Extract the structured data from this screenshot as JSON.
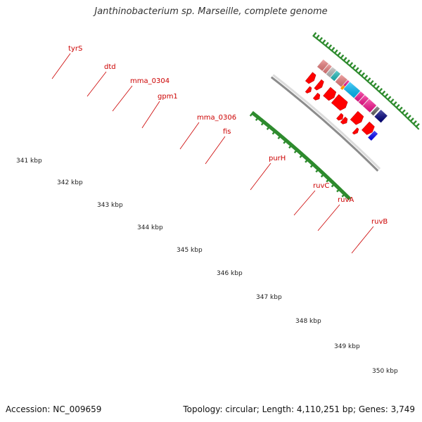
{
  "title": "Janthinobacterium sp. Marseille, complete genome",
  "footer": {
    "accession": "Accession: NC_009659",
    "summary": "Topology: circular; Length: 4,110,251 bp; Genes: 3,749"
  },
  "colors": {
    "cds_arrow": "#ff0000",
    "backbone": "#8c8c8c",
    "tick": "#2e8b2e",
    "label": "#cc0000"
  },
  "gene_labels": [
    "tyrS",
    "dtd",
    "mma_0304",
    "gpm1",
    "mma_0306",
    "fis",
    "purH",
    "ruvC",
    "ruvA",
    "ruvB"
  ],
  "kbp_labels": [
    "341 kbp",
    "342 kbp",
    "343 kbp",
    "344 kbp",
    "345 kbp",
    "346 kbp",
    "347 kbp",
    "348 kbp",
    "349 kbp",
    "350 kbp"
  ],
  "cog_blocks": [
    {
      "gene": "tyrS",
      "color": "#f08080"
    },
    {
      "gene": "dtd",
      "color": "#f08080"
    },
    {
      "gene": "mma_0304",
      "color": "#c0c0c0"
    },
    {
      "gene": "gpm1",
      "color": "#20c0c0"
    },
    {
      "gene": "mma_0306",
      "color": "#f08080"
    },
    {
      "gene": "fis",
      "color": "#ff1493"
    },
    {
      "gene": "purH",
      "color": "#00bfff"
    },
    {
      "gene": "ruvC",
      "color": "#ff1493"
    },
    {
      "gene": "ruvA",
      "color": "#ff1493"
    },
    {
      "gene": "ruvB",
      "color": "#ff1493"
    },
    {
      "gene": "",
      "color": "#696969"
    },
    {
      "gene": "",
      "color": "#000080"
    },
    {
      "gene": "",
      "color": "#0000ff"
    }
  ]
}
